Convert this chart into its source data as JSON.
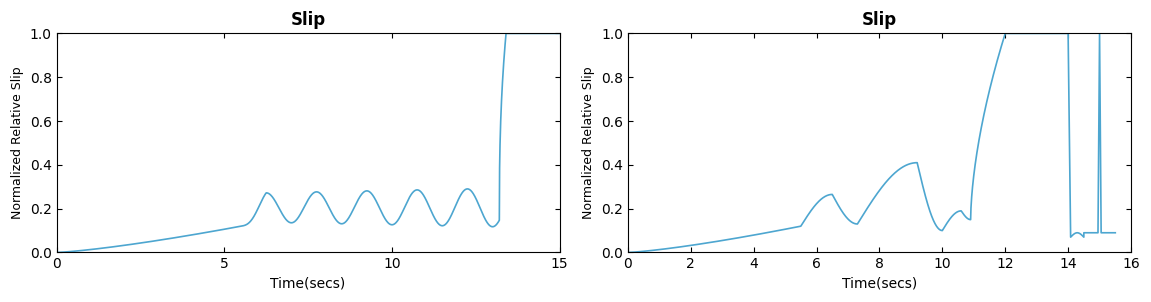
{
  "title": "Slip",
  "xlabel": "Time(secs)",
  "ylabel": "Normalized Relative Slip",
  "line_color": "#4da6d0",
  "line_width": 1.2,
  "background_color": "#ffffff",
  "plot1": {
    "xlim": [
      0,
      15
    ],
    "ylim": [
      0,
      1
    ],
    "xticks": [
      0,
      5,
      10,
      15
    ],
    "yticks": [
      0,
      0.2,
      0.4,
      0.6,
      0.8,
      1.0
    ]
  },
  "plot2": {
    "xlim": [
      0,
      16
    ],
    "ylim": [
      0,
      1
    ],
    "xticks": [
      0,
      2,
      4,
      6,
      8,
      10,
      12,
      14,
      16
    ],
    "yticks": [
      0,
      0.2,
      0.4,
      0.6,
      0.8,
      1.0
    ]
  }
}
